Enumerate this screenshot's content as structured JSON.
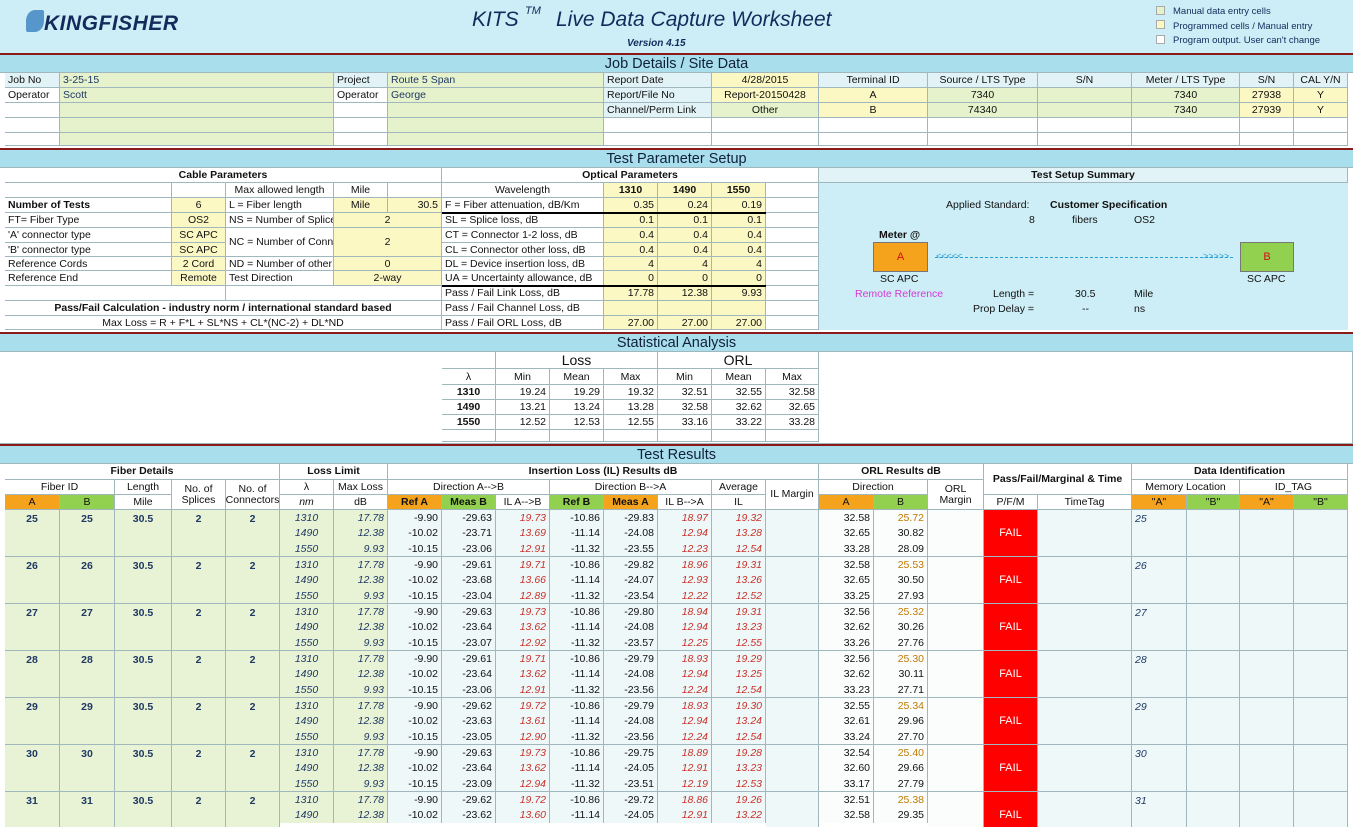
{
  "header": {
    "logo": "KINGFISHER",
    "title": "KITS",
    "trademark": "TM",
    "subtitle": "Live Data Capture Worksheet",
    "version": "Version 4.15",
    "legend": [
      "Manual data entry cells",
      "Programmed cells / Manual entry",
      "Program output. User can't change"
    ]
  },
  "job_details": {
    "title": "Job Details / Site Data",
    "rows": [
      [
        "Job No",
        "3-25-15",
        "Project",
        "Route 5 Span",
        "Report Date",
        "4/28/2015",
        "Terminal ID",
        "Source / LTS Type",
        "S/N",
        "Meter / LTS Type",
        "S/N",
        "CAL Y/N"
      ],
      [
        "Operator",
        "Scott",
        "Operator",
        "George",
        "Report/File No",
        "Report-20150428",
        "A",
        "7340",
        null,
        "7340",
        "27938",
        "Y"
      ],
      [
        null,
        null,
        null,
        null,
        "Channel/Perm Link",
        "Other",
        "B",
        "74340",
        null,
        "7340",
        "27939",
        "Y"
      ]
    ]
  },
  "test_parameter_setup": {
    "title": "Test Parameter Setup",
    "cable_parameters": {
      "title": "Cable Parameters",
      "max_allowed_length": "Max allowed length",
      "max_allowed_unit": "Mile",
      "left": [
        [
          "Number of Tests",
          "6"
        ],
        [
          "FT= Fiber Type",
          "OS2"
        ],
        [
          "'A' connector type",
          "SC APC"
        ],
        [
          "'B' connector type",
          "SC APC"
        ],
        [
          "Reference Cords",
          "2 Cord"
        ],
        [
          "Reference End",
          "Remote"
        ]
      ],
      "right": [
        [
          "L = Fiber length",
          "Mile",
          "30.5"
        ],
        [
          "NS = Number of Splices",
          "2"
        ],
        [
          "NC = Number of Connectors",
          "2"
        ],
        [
          "ND = Number of other Devices",
          "0"
        ],
        [
          "Test Direction",
          "2-way"
        ]
      ],
      "formula_title": "Pass/Fail Calculation - industry norm / international standard based",
      "formula": "Max Loss = R + F*L + SL*NS + CL*(NC-2) + DL*ND"
    },
    "optical_parameters": {
      "title": "Optical Parameters",
      "header": "Wavelength",
      "wavelengths": [
        "1310",
        "1490",
        "1550"
      ],
      "rows": [
        [
          "F = Fiber attenuation, dB/Km",
          "0.35",
          "0.24",
          "0.19"
        ],
        [
          "SL = Splice loss, dB",
          "0.1",
          "0.1",
          "0.1"
        ],
        [
          "CT = Connector 1-2 loss, dB",
          "0.4",
          "0.4",
          "0.4"
        ],
        [
          "CL = Connector other loss, dB",
          "0.4",
          "0.4",
          "0.4"
        ],
        [
          "DL = Device insertion loss, dB",
          "4",
          "4",
          "4"
        ],
        [
          "UA = Uncertainty allowance, dB",
          "0",
          "0",
          "0"
        ],
        [
          "Pass / Fail Link Loss, dB",
          "17.78",
          "12.38",
          "9.93"
        ],
        [
          "Pass / Fail Channel Loss, dB",
          null,
          null,
          null
        ],
        [
          "Pass / Fail ORL Loss, dB",
          "27.00",
          "27.00",
          "27.00"
        ]
      ]
    },
    "summary": {
      "title": "Test Setup Summary",
      "standard_label": "Applied Standard:",
      "standard": "Customer Specification",
      "fiber_count": "8",
      "fibers_label": "fibers",
      "fiber_type": "OS2",
      "meter_label": "Meter @",
      "terminal_a": "A",
      "connector_a": "SC APC",
      "arrow_left": "<<<<<",
      "arrow_right": ">>>>>",
      "terminal_b": "B",
      "connector_b": "SC APC",
      "reference": "Remote Reference",
      "length_label": "Length =",
      "length": "30.5",
      "length_unit": "Mile",
      "delay_label": "Prop Delay =",
      "delay": "--",
      "delay_unit": "ns"
    }
  },
  "statistical_analysis": {
    "title": "Statistical Analysis",
    "groups": [
      "Loss",
      "ORL"
    ],
    "columns": [
      "λ",
      "Min",
      "Mean",
      "Max",
      "Min",
      "Mean",
      "Max"
    ],
    "rows": [
      [
        "1310",
        "19.24",
        "19.29",
        "19.32",
        "32.51",
        "32.55",
        "32.58"
      ],
      [
        "1490",
        "13.21",
        "13.24",
        "13.28",
        "32.58",
        "32.62",
        "32.65"
      ],
      [
        "1550",
        "12.52",
        "12.53",
        "12.55",
        "33.16",
        "33.22",
        "33.28"
      ]
    ]
  },
  "test_results": {
    "title": "Test Results",
    "groups": [
      "Fiber Details",
      "Loss Limit",
      "Insertion Loss (IL) Results dB",
      "ORL Results dB",
      "Pass/Fail/Marginal & Time",
      "Data Identification"
    ],
    "subgroups": [
      "Fiber ID",
      "Length",
      "No. of Splices",
      "No. of Connectors",
      "λ",
      "Max Loss",
      "Direction A-->B",
      "Direction B-->A",
      "Average",
      "IL Margin",
      "Direction",
      "ORL Margin",
      "Memory Location",
      "ID_TAG"
    ],
    "columns": [
      "A",
      "B",
      "Mile",
      "nm",
      "dB",
      "Ref A",
      "Meas B",
      "IL A-->B",
      "Ref B",
      "Meas A",
      "IL B-->A",
      "IL",
      "A",
      "B",
      "P/F/M",
      "TimeTag",
      "\"A\"",
      "\"B\"",
      "\"A\"",
      "\"B\""
    ],
    "fibers": [
      {
        "id_a": "25",
        "id_b": "25",
        "length": "30.5",
        "splices": "2",
        "connectors": "2",
        "result": "FAIL",
        "memory_a": "25",
        "rows": [
          [
            "1310",
            "17.78",
            "-9.90",
            "-29.63",
            "19.73",
            "-10.86",
            "-29.83",
            "18.97",
            "19.32",
            "32.58",
            "25.72"
          ],
          [
            "1490",
            "12.38",
            "-10.02",
            "-23.71",
            "13.69",
            "-11.14",
            "-24.08",
            "12.94",
            "13.28",
            "32.65",
            "30.82"
          ],
          [
            "1550",
            "9.93",
            "-10.15",
            "-23.06",
            "12.91",
            "-11.32",
            "-23.55",
            "12.23",
            "12.54",
            "33.28",
            "28.09"
          ]
        ]
      },
      {
        "id_a": "26",
        "id_b": "26",
        "length": "30.5",
        "splices": "2",
        "connectors": "2",
        "result": "FAIL",
        "memory_a": "26",
        "rows": [
          [
            "1310",
            "17.78",
            "-9.90",
            "-29.61",
            "19.71",
            "-10.86",
            "-29.82",
            "18.96",
            "19.31",
            "32.58",
            "25.53"
          ],
          [
            "1490",
            "12.38",
            "-10.02",
            "-23.68",
            "13.66",
            "-11.14",
            "-24.07",
            "12.93",
            "13.26",
            "32.65",
            "30.50"
          ],
          [
            "1550",
            "9.93",
            "-10.15",
            "-23.04",
            "12.89",
            "-11.32",
            "-23.54",
            "12.22",
            "12.52",
            "33.25",
            "27.93"
          ]
        ]
      },
      {
        "id_a": "27",
        "id_b": "27",
        "length": "30.5",
        "splices": "2",
        "connectors": "2",
        "result": "FAIL",
        "memory_a": "27",
        "rows": [
          [
            "1310",
            "17.78",
            "-9.90",
            "-29.63",
            "19.73",
            "-10.86",
            "-29.80",
            "18.94",
            "19.31",
            "32.56",
            "25.32"
          ],
          [
            "1490",
            "12.38",
            "-10.02",
            "-23.64",
            "13.62",
            "-11.14",
            "-24.08",
            "12.94",
            "13.23",
            "32.62",
            "30.26"
          ],
          [
            "1550",
            "9.93",
            "-10.15",
            "-23.07",
            "12.92",
            "-11.32",
            "-23.57",
            "12.25",
            "12.55",
            "33.26",
            "27.76"
          ]
        ]
      },
      {
        "id_a": "28",
        "id_b": "28",
        "length": "30.5",
        "splices": "2",
        "connectors": "2",
        "result": "FAIL",
        "memory_a": "28",
        "rows": [
          [
            "1310",
            "17.78",
            "-9.90",
            "-29.61",
            "19.71",
            "-10.86",
            "-29.79",
            "18.93",
            "19.29",
            "32.56",
            "25.30"
          ],
          [
            "1490",
            "12.38",
            "-10.02",
            "-23.64",
            "13.62",
            "-11.14",
            "-24.08",
            "12.94",
            "13.25",
            "32.62",
            "30.11"
          ],
          [
            "1550",
            "9.93",
            "-10.15",
            "-23.06",
            "12.91",
            "-11.32",
            "-23.56",
            "12.24",
            "12.54",
            "33.23",
            "27.71"
          ]
        ]
      },
      {
        "id_a": "29",
        "id_b": "29",
        "length": "30.5",
        "splices": "2",
        "connectors": "2",
        "result": "FAIL",
        "memory_a": "29",
        "rows": [
          [
            "1310",
            "17.78",
            "-9.90",
            "-29.62",
            "19.72",
            "-10.86",
            "-29.79",
            "18.93",
            "19.30",
            "32.55",
            "25.34"
          ],
          [
            "1490",
            "12.38",
            "-10.02",
            "-23.63",
            "13.61",
            "-11.14",
            "-24.08",
            "12.94",
            "13.24",
            "32.61",
            "29.96"
          ],
          [
            "1550",
            "9.93",
            "-10.15",
            "-23.05",
            "12.90",
            "-11.32",
            "-23.56",
            "12.24",
            "12.54",
            "33.24",
            "27.70"
          ]
        ]
      },
      {
        "id_a": "30",
        "id_b": "30",
        "length": "30.5",
        "splices": "2",
        "connectors": "2",
        "result": "FAIL",
        "memory_a": "30",
        "rows": [
          [
            "1310",
            "17.78",
            "-9.90",
            "-29.63",
            "19.73",
            "-10.86",
            "-29.75",
            "18.89",
            "19.28",
            "32.54",
            "25.40"
          ],
          [
            "1490",
            "12.38",
            "-10.02",
            "-23.64",
            "13.62",
            "-11.14",
            "-24.05",
            "12.91",
            "13.23",
            "32.60",
            "29.66"
          ],
          [
            "1550",
            "9.93",
            "-10.15",
            "-23.09",
            "12.94",
            "-11.32",
            "-23.51",
            "12.19",
            "12.53",
            "33.17",
            "27.79"
          ]
        ]
      },
      {
        "id_a": "31",
        "id_b": "31",
        "length": "30.5",
        "splices": "2",
        "connectors": "2",
        "result": "FAIL",
        "memory_a": "31",
        "rows": [
          [
            "1310",
            "17.78",
            "-9.90",
            "-29.62",
            "19.72",
            "-10.86",
            "-29.72",
            "18.86",
            "19.26",
            "32.51",
            "25.38"
          ],
          [
            "1490",
            "12.38",
            "-10.02",
            "-23.62",
            "13.60",
            "-11.14",
            "-24.05",
            "12.91",
            "13.22",
            "32.58",
            "29.35"
          ]
        ]
      }
    ]
  }
}
